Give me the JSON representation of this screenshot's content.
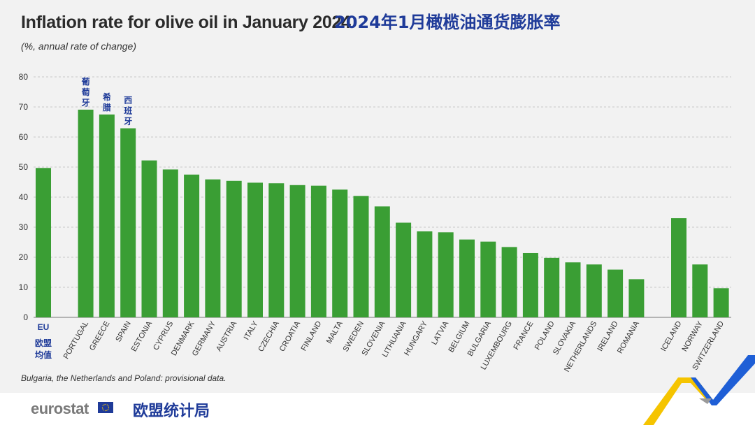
{
  "header": {
    "title": "Inflation rate for olive oil in January 2024",
    "subtitle": "(%, annual rate of change)",
    "title_cn": "2024年1月橄榄油通货膨胀率"
  },
  "chart_data": {
    "type": "bar",
    "ylim": [
      0,
      80
    ],
    "yticks": [
      0,
      10,
      20,
      30,
      40,
      50,
      60,
      70,
      80
    ],
    "grid": true,
    "bar_color": "#3a9e34",
    "categories": [
      "EU",
      "PORTUGAL",
      "GREECE",
      "SPAIN",
      "ESTONIA",
      "CYPRUS",
      "DENMARK",
      "GERMANY",
      "AUSTRIA",
      "ITALY",
      "CZECHIA",
      "CROATIA",
      "FINLAND",
      "MALTA",
      "SWEDEN",
      "SLOVENIA",
      "LITHUANIA",
      "HUNGARY",
      "LATVIA",
      "BELGIUM",
      "BULGARIA",
      "LUXEMBOURG",
      "FRANCE",
      "POLAND",
      "SLOVAKIA",
      "NETHERLANDS",
      "IRELAND",
      "ROMANIA",
      "ICELAND",
      "NORWAY",
      "SWITZERLAND"
    ],
    "values": [
      49.7,
      69.1,
      67.5,
      62.9,
      52.2,
      49.2,
      47.5,
      45.9,
      45.4,
      44.8,
      44.6,
      44.0,
      43.8,
      42.5,
      40.4,
      36.9,
      31.5,
      28.6,
      28.3,
      25.9,
      25.2,
      23.4,
      21.4,
      19.8,
      18.3,
      17.6,
      15.9,
      12.7,
      33.0,
      17.6,
      9.7
    ],
    "cn_labels": [
      {
        "category": "PORTUGAL",
        "text": "葡萄牙"
      },
      {
        "category": "GREECE",
        "text": "希腊"
      },
      {
        "category": "SPAIN",
        "text": "西班牙"
      }
    ],
    "eu_cn_label": "欧盟均值"
  },
  "note": "Bulgaria, the Netherlands and Poland: provisional data.",
  "footer": {
    "logo": "eurostat",
    "text_cn": "欧盟统计局"
  },
  "colors": {
    "bar": "#3a9e34",
    "cn_text": "#1f3b99",
    "background": "#f2f2f2"
  }
}
